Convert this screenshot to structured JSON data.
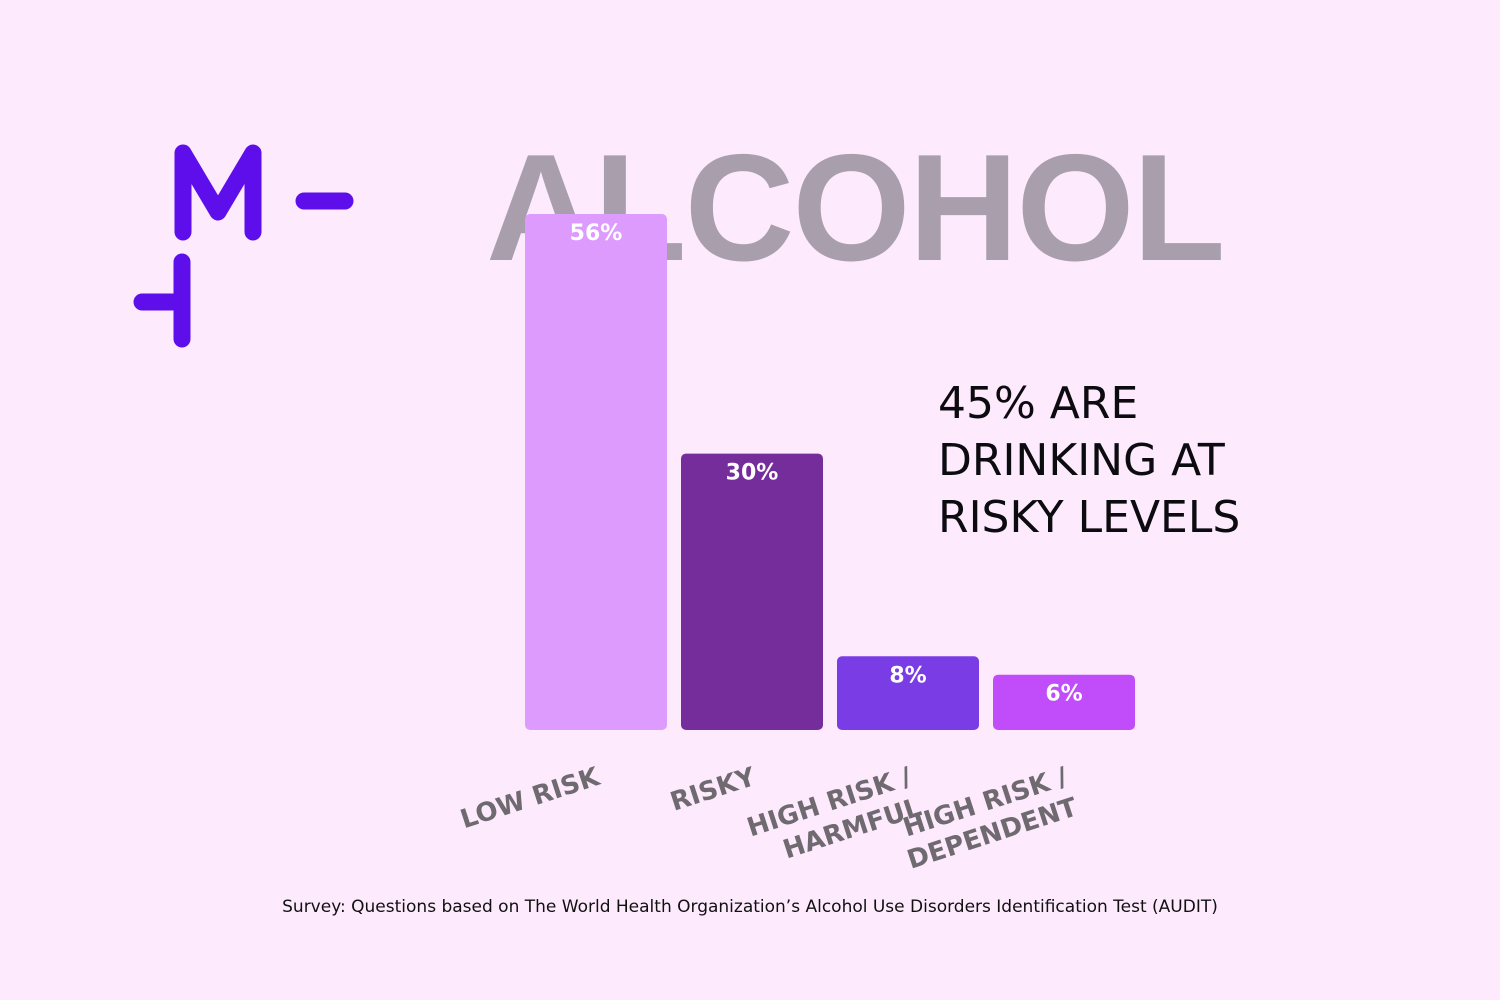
{
  "logo": {
    "name": "brand-logo",
    "letter": "M",
    "color": "#5d0eea"
  },
  "headline": "ALCOHOL",
  "callout": "45% ARE\nDRINKING AT\nRISKY LEVELS",
  "footnote": "Survey: Questions based on The World Health Organization’s Alcohol Use Disorders Identification Test (AUDIT)",
  "chart_data": {
    "type": "bar",
    "categories": [
      [
        "LOW RISK"
      ],
      [
        "RISKY"
      ],
      [
        "HIGH RISK /",
        "HARMFUL"
      ],
      [
        "HIGH RISK /",
        "DEPENDENT"
      ]
    ],
    "values": [
      56,
      30,
      8,
      6
    ],
    "value_labels": [
      "56%",
      "30%",
      "8%",
      "6%"
    ],
    "colors": [
      "#dd9cfd",
      "#762d9c",
      "#7a3ce4",
      "#c04df9"
    ],
    "title": "",
    "xlabel": "",
    "ylabel": "",
    "ylim": [
      0,
      56
    ],
    "grid": false,
    "legend": "none"
  }
}
